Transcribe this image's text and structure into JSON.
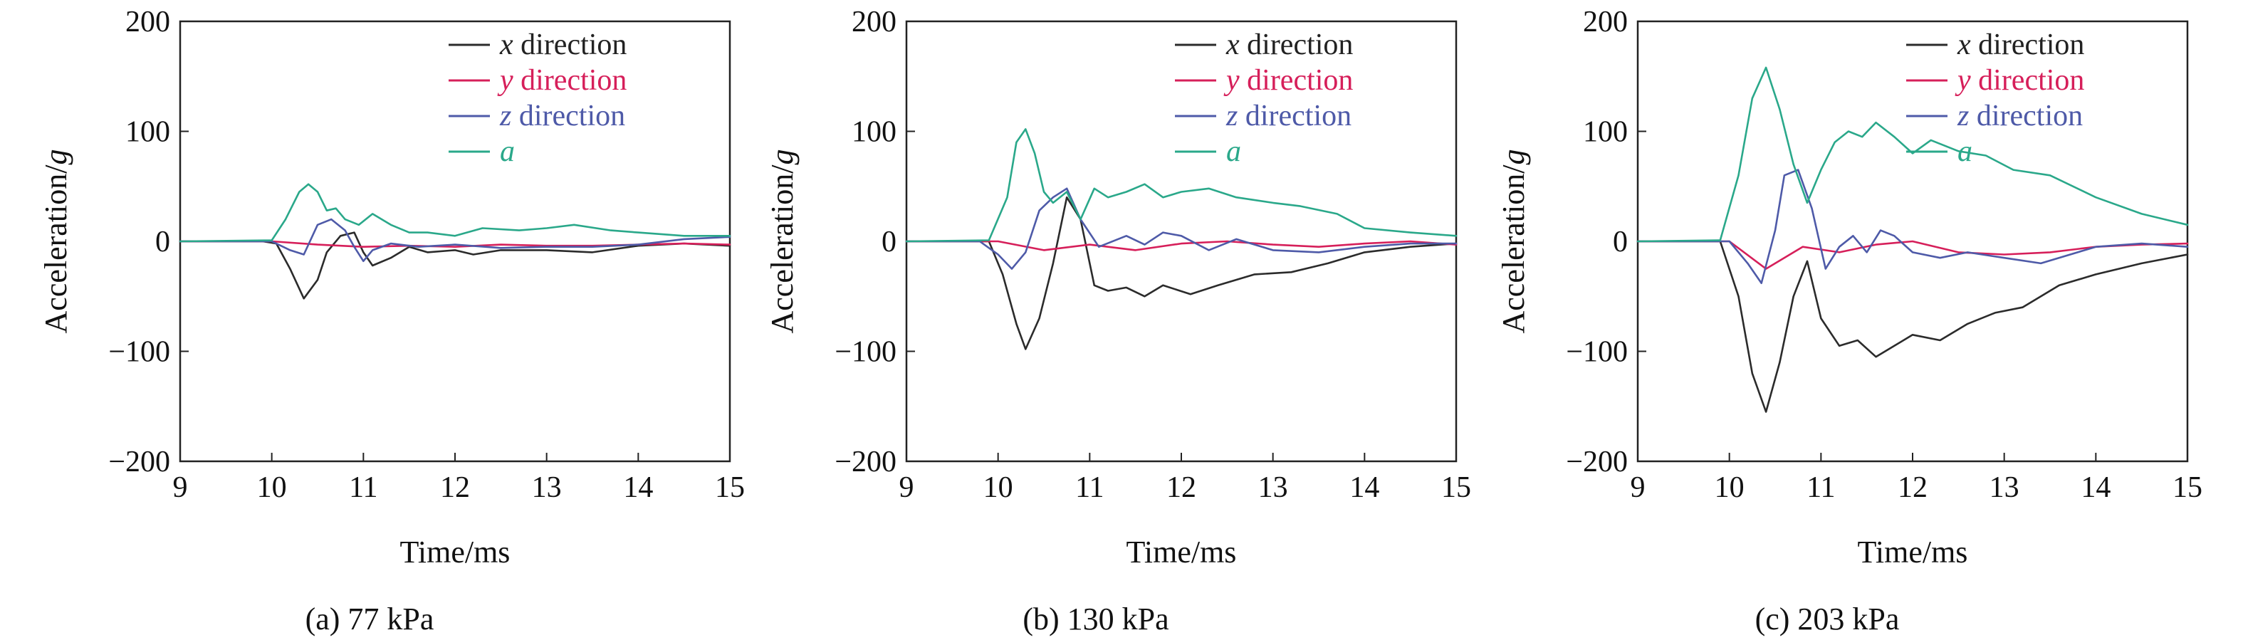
{
  "chart_data": [
    {
      "type": "line",
      "caption": "(a) 77 kPa",
      "xlabel": "Time/ms",
      "ylabel": {
        "text": "Acceleration/",
        "var": "g"
      },
      "xlim": [
        9,
        15
      ],
      "ylim": [
        -200,
        200
      ],
      "xticks": [
        "9",
        "10",
        "11",
        "12",
        "13",
        "14",
        "15"
      ],
      "yticks": [
        "200",
        "100",
        "0",
        "−100",
        "−200"
      ],
      "legend": {
        "position": "top-right"
      },
      "series": [
        {
          "name": "direction",
          "var": "x",
          "color": "#2b2b2b",
          "label_color": "#222222",
          "x": [
            9,
            9.9,
            10.05,
            10.2,
            10.35,
            10.5,
            10.6,
            10.75,
            10.9,
            11.0,
            11.1,
            11.3,
            11.5,
            11.7,
            12.0,
            12.2,
            12.5,
            13.0,
            13.5,
            14.0,
            14.5,
            15
          ],
          "y": [
            0,
            0,
            -2,
            -25,
            -52,
            -35,
            -10,
            5,
            8,
            -10,
            -22,
            -15,
            -5,
            -10,
            -8,
            -12,
            -8,
            -8,
            -10,
            -4,
            -2,
            -4
          ]
        },
        {
          "name": "direction",
          "var": "y",
          "color": "#d61f5a",
          "label_color": "#d61f5a",
          "x": [
            9,
            10,
            10.5,
            11.0,
            11.5,
            12.0,
            12.5,
            13.0,
            13.5,
            14.0,
            14.5,
            15
          ],
          "y": [
            0,
            0,
            -3,
            -5,
            -4,
            -5,
            -3,
            -4,
            -4,
            -3,
            -2,
            -3
          ]
        },
        {
          "name": "direction",
          "var": "z",
          "color": "#4e5aa8",
          "label_color": "#4e5aa8",
          "x": [
            9,
            10.0,
            10.2,
            10.35,
            10.5,
            10.65,
            10.8,
            10.9,
            11.0,
            11.1,
            11.3,
            11.6,
            12.0,
            12.5,
            13.0,
            13.5,
            14.0,
            14.5,
            15
          ],
          "y": [
            0,
            0,
            -8,
            -12,
            15,
            20,
            10,
            -5,
            -18,
            -8,
            -2,
            -5,
            -3,
            -6,
            -5,
            -5,
            -3,
            2,
            4
          ]
        },
        {
          "name": "",
          "var": "a",
          "color": "#2aa88a",
          "label_color": "#2aa88a",
          "x": [
            9,
            10.0,
            10.15,
            10.3,
            10.4,
            10.5,
            10.6,
            10.7,
            10.8,
            10.95,
            11.1,
            11.3,
            11.5,
            11.7,
            12.0,
            12.3,
            12.7,
            13.0,
            13.3,
            13.7,
            14.0,
            14.5,
            15
          ],
          "y": [
            0,
            1,
            20,
            45,
            52,
            45,
            28,
            30,
            20,
            15,
            25,
            15,
            8,
            8,
            5,
            12,
            10,
            12,
            15,
            10,
            8,
            5,
            5
          ]
        }
      ]
    },
    {
      "type": "line",
      "caption": "(b) 130 kPa",
      "xlabel": "Time/ms",
      "ylabel": {
        "text": "Acceleration/",
        "var": "g"
      },
      "xlim": [
        9,
        15
      ],
      "ylim": [
        -200,
        200
      ],
      "xticks": [
        "9",
        "10",
        "11",
        "12",
        "13",
        "14",
        "15"
      ],
      "yticks": [
        "200",
        "100",
        "0",
        "−100",
        "−200"
      ],
      "legend": {
        "position": "top-right"
      },
      "series": [
        {
          "name": "direction",
          "var": "x",
          "color": "#2b2b2b",
          "label_color": "#222222",
          "x": [
            9,
            9.9,
            10.05,
            10.2,
            10.3,
            10.45,
            10.6,
            10.75,
            10.9,
            11.05,
            11.2,
            11.4,
            11.6,
            11.8,
            12.1,
            12.4,
            12.8,
            13.2,
            13.6,
            14.0,
            14.5,
            15
          ],
          "y": [
            0,
            0,
            -30,
            -75,
            -98,
            -70,
            -20,
            40,
            20,
            -40,
            -45,
            -42,
            -50,
            -40,
            -48,
            -40,
            -30,
            -28,
            -20,
            -10,
            -5,
            -2
          ]
        },
        {
          "name": "direction",
          "var": "y",
          "color": "#d61f5a",
          "label_color": "#d61f5a",
          "x": [
            9,
            10,
            10.5,
            11.0,
            11.5,
            12.0,
            12.5,
            13.0,
            13.5,
            14.0,
            14.5,
            15
          ],
          "y": [
            0,
            0,
            -8,
            -3,
            -8,
            -2,
            0,
            -3,
            -5,
            -2,
            0,
            -3
          ]
        },
        {
          "name": "direction",
          "var": "z",
          "color": "#4e5aa8",
          "label_color": "#4e5aa8",
          "x": [
            9,
            9.8,
            10.0,
            10.15,
            10.3,
            10.45,
            10.6,
            10.75,
            10.9,
            11.1,
            11.4,
            11.6,
            11.8,
            12.0,
            12.3,
            12.6,
            13.0,
            13.5,
            14.0,
            14.5,
            15
          ],
          "y": [
            0,
            0,
            -12,
            -25,
            -10,
            28,
            40,
            48,
            20,
            -5,
            5,
            -3,
            8,
            5,
            -8,
            2,
            -8,
            -10,
            -5,
            -2,
            -2
          ]
        },
        {
          "name": "",
          "var": "a",
          "color": "#2aa88a",
          "label_color": "#2aa88a",
          "x": [
            9,
            9.9,
            10.1,
            10.2,
            10.3,
            10.4,
            10.5,
            10.6,
            10.75,
            10.9,
            11.05,
            11.2,
            11.4,
            11.6,
            11.8,
            12.0,
            12.3,
            12.6,
            13.0,
            13.3,
            13.7,
            14.0,
            14.5,
            15
          ],
          "y": [
            0,
            1,
            40,
            90,
            102,
            80,
            45,
            35,
            45,
            20,
            48,
            40,
            45,
            52,
            40,
            45,
            48,
            40,
            35,
            32,
            25,
            12,
            8,
            5
          ]
        }
      ]
    },
    {
      "type": "line",
      "caption": "(c) 203 kPa",
      "xlabel": "Time/ms",
      "ylabel": {
        "text": "Acceleration/",
        "var": "g"
      },
      "xlim": [
        9,
        15
      ],
      "ylim": [
        -200,
        200
      ],
      "xticks": [
        "9",
        "10",
        "11",
        "12",
        "13",
        "14",
        "15"
      ],
      "yticks": [
        "200",
        "100",
        "0",
        "−100",
        "−200"
      ],
      "legend": {
        "position": "top-right"
      },
      "series": [
        {
          "name": "direction",
          "var": "x",
          "color": "#2b2b2b",
          "label_color": "#222222",
          "x": [
            9,
            9.9,
            10.1,
            10.25,
            10.4,
            10.55,
            10.7,
            10.85,
            11.0,
            11.2,
            11.4,
            11.6,
            11.8,
            12.0,
            12.3,
            12.6,
            12.9,
            13.2,
            13.6,
            14.0,
            14.5,
            15
          ],
          "y": [
            0,
            0,
            -50,
            -120,
            -155,
            -110,
            -50,
            -18,
            -70,
            -95,
            -90,
            -105,
            -95,
            -85,
            -90,
            -75,
            -65,
            -60,
            -40,
            -30,
            -20,
            -12
          ]
        },
        {
          "name": "direction",
          "var": "y",
          "color": "#d61f5a",
          "label_color": "#d61f5a",
          "x": [
            9,
            10,
            10.4,
            10.8,
            11.2,
            11.6,
            12.0,
            12.5,
            13.0,
            13.5,
            14.0,
            14.5,
            15
          ],
          "y": [
            0,
            0,
            -25,
            -5,
            -10,
            -3,
            0,
            -10,
            -12,
            -10,
            -5,
            -3,
            -2
          ]
        },
        {
          "name": "direction",
          "var": "z",
          "color": "#4e5aa8",
          "label_color": "#4e5aa8",
          "x": [
            9,
            10.0,
            10.2,
            10.35,
            10.5,
            10.6,
            10.75,
            10.9,
            11.05,
            11.2,
            11.35,
            11.5,
            11.65,
            11.8,
            12.0,
            12.3,
            12.6,
            13.0,
            13.4,
            14.0,
            14.5,
            15
          ],
          "y": [
            0,
            0,
            -20,
            -38,
            10,
            60,
            65,
            30,
            -25,
            -5,
            5,
            -10,
            10,
            5,
            -10,
            -15,
            -10,
            -15,
            -20,
            -5,
            -2,
            -5
          ]
        },
        {
          "name": "",
          "var": "a",
          "color": "#2aa88a",
          "label_color": "#2aa88a",
          "x": [
            9,
            9.9,
            10.1,
            10.25,
            10.4,
            10.55,
            10.7,
            10.85,
            11.0,
            11.15,
            11.3,
            11.45,
            11.6,
            11.8,
            12.0,
            12.2,
            12.5,
            12.8,
            13.1,
            13.5,
            14.0,
            14.5,
            15
          ],
          "y": [
            0,
            1,
            60,
            130,
            158,
            120,
            70,
            35,
            65,
            90,
            100,
            95,
            108,
            95,
            80,
            92,
            82,
            78,
            65,
            60,
            40,
            25,
            15
          ]
        }
      ]
    }
  ]
}
